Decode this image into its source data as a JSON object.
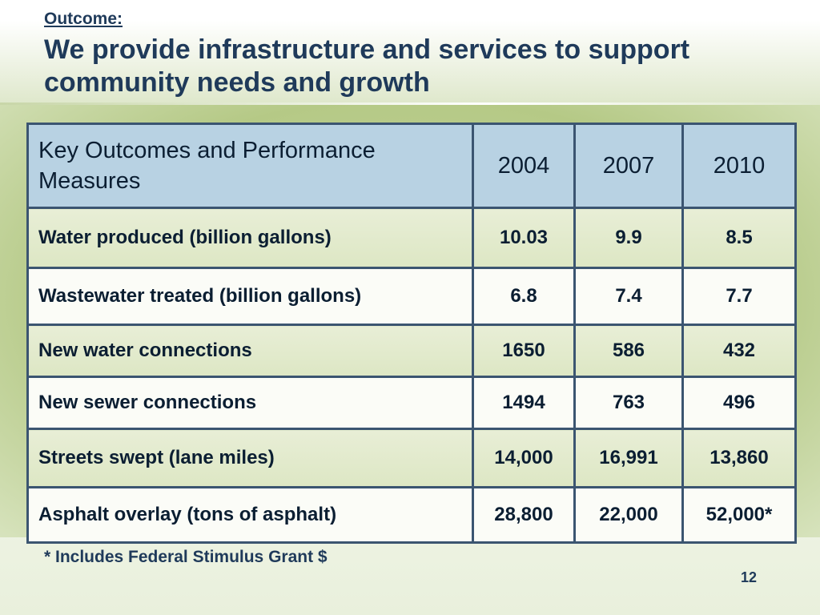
{
  "slide": {
    "outcome_label": "Outcome:",
    "title": "We provide infrastructure and services to support community needs and growth",
    "footnote": "* Includes Federal Stimulus Grant $",
    "page_number": "12"
  },
  "table": {
    "header": {
      "measure": "Key Outcomes  and Performance Measures",
      "years": [
        "2004",
        "2007",
        "2010"
      ]
    },
    "rows": [
      {
        "measure": "Water produced (billion gallons)",
        "values": [
          "10.03",
          "9.9",
          "8.5"
        ]
      },
      {
        "measure": "Wastewater treated (billion gallons)",
        "values": [
          "6.8",
          "7.4",
          "7.7"
        ]
      },
      {
        "measure": "New water connections",
        "values": [
          "1650",
          "586",
          "432"
        ]
      },
      {
        "measure": "New sewer connections",
        "values": [
          "1494",
          "763",
          "496"
        ]
      },
      {
        "measure": "Streets swept  (lane miles)",
        "values": [
          "14,000",
          "16,991",
          "13,860"
        ]
      },
      {
        "measure": "Asphalt overlay  (tons of asphalt)",
        "values": [
          "28,800",
          "22,000",
          "52,000*"
        ]
      }
    ]
  },
  "colors": {
    "title_navy": "#1f3a5a",
    "header_fill": "#b8d2e3",
    "row_green": "#dde7c4",
    "row_white": "#fbfcf7",
    "border": "#3b5571"
  }
}
